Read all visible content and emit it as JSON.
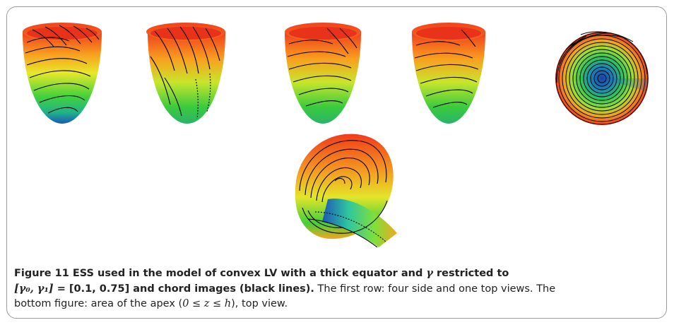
{
  "caption": {
    "label": "Figure 11",
    "title_part1": " ESS used in the model of convex LV with a thick equator and ",
    "gamma_symbol": "γ",
    "title_part2": " restricted to",
    "interval_lhs": "[γ₀, γ₁]",
    "equals": " = [",
    "interval_value": "0.1, 0.75",
    "title_part3": "] and chord images (black lines).",
    "body_line1": " The first row: four side and one top views. The",
    "body_line2a": "bottom figure: area of the apex (",
    "apex_range": "0 ≤ z ≤ h",
    "body_line2b": "), top view."
  },
  "figures": {
    "row1": [
      "side-view-1",
      "side-view-2",
      "side-view-3",
      "side-view-4",
      "top-view"
    ],
    "row2": [
      "apex-top-view"
    ]
  },
  "colors": {
    "base": "#f03b1c",
    "mid": "#e7e82a",
    "green": "#33cc33",
    "apex": "#1b57b8",
    "chord": "#000000"
  }
}
